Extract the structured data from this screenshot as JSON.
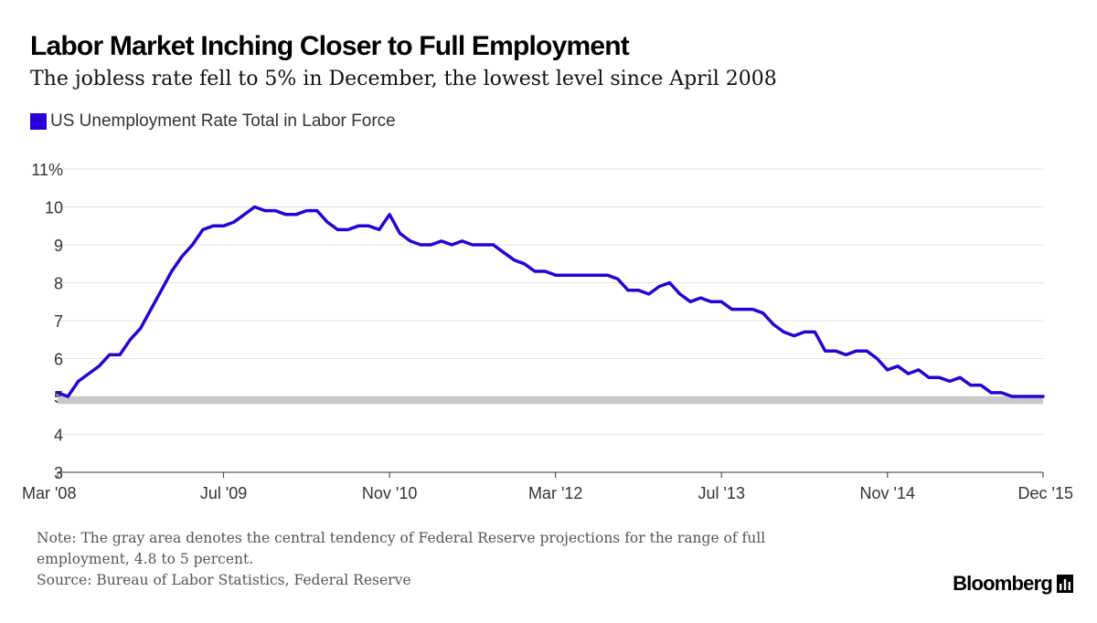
{
  "chart_data": {
    "type": "line",
    "title": "Labor Market Inching Closer to Full Employment",
    "subtitle": "The jobless rate fell to 5% in December, the lowest level since April 2008",
    "series": [
      {
        "name": "US Unemployment Rate Total in Labor Force",
        "color": "#2a00d8",
        "start": "2008-03",
        "end": "2015-12",
        "frequency": "monthly",
        "values": [
          5.1,
          5.0,
          5.4,
          5.6,
          5.8,
          6.1,
          6.1,
          6.5,
          6.8,
          7.3,
          7.8,
          8.3,
          8.7,
          9.0,
          9.4,
          9.5,
          9.5,
          9.6,
          9.8,
          10.0,
          9.9,
          9.9,
          9.8,
          9.8,
          9.9,
          9.9,
          9.6,
          9.4,
          9.4,
          9.5,
          9.5,
          9.4,
          9.8,
          9.3,
          9.1,
          9.0,
          9.0,
          9.1,
          9.0,
          9.1,
          9.0,
          9.0,
          9.0,
          8.8,
          8.6,
          8.5,
          8.3,
          8.3,
          8.2,
          8.2,
          8.2,
          8.2,
          8.2,
          8.2,
          8.1,
          7.8,
          7.8,
          7.7,
          7.9,
          8.0,
          7.7,
          7.5,
          7.6,
          7.5,
          7.5,
          7.3,
          7.3,
          7.3,
          7.2,
          6.9,
          6.7,
          6.6,
          6.7,
          6.7,
          6.2,
          6.2,
          6.1,
          6.2,
          6.2,
          6.0,
          5.7,
          5.8,
          5.6,
          5.7,
          5.5,
          5.5,
          5.4,
          5.5,
          5.3,
          5.3,
          5.1,
          5.1,
          5.0,
          5.0,
          5.0,
          5.0
        ]
      }
    ],
    "band": {
      "from": 4.8,
      "to": 5.0,
      "color": "#c8c8c8"
    },
    "x_ticks": [
      "Mar '08",
      "Jul '09",
      "Nov '10",
      "Mar '12",
      "Jul '13",
      "Nov '14",
      "Dec '15"
    ],
    "y_ticks": [
      "3",
      "4",
      "5",
      "6",
      "7",
      "8",
      "9",
      "10",
      "11%"
    ],
    "ylim": [
      3,
      11
    ],
    "grid": true,
    "legend_position": "top-left"
  },
  "note": "Note: The gray area denotes the central tendency of Federal Reserve projections for the range of full employment, 4.8 to 5 percent.",
  "source": "Source: Bureau of Labor Statistics, Federal Reserve",
  "brand": "Bloomberg"
}
